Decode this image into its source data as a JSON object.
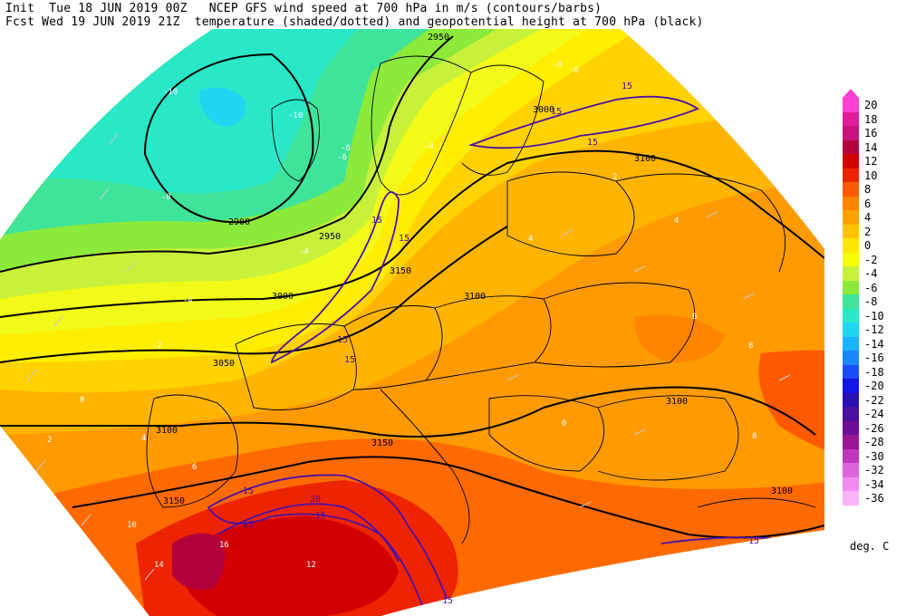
{
  "header": {
    "line1": "Init  Tue 18 JUN 2019 00Z   NCEP GFS wind speed at 700 hPa in m/s (contours/barbs)",
    "line2": "Fcst Wed 19 JUN 2019 21Z  temperature (shaded/dotted) and geopotential height at 700 hPa (black)"
  },
  "legend": {
    "units": "deg. C",
    "levels": [
      {
        "label": "20",
        "color": "#ff3fcf"
      },
      {
        "label": "18",
        "color": "#e41a9c"
      },
      {
        "label": "16",
        "color": "#c8137c"
      },
      {
        "label": "14",
        "color": "#b3003c"
      },
      {
        "label": "12",
        "color": "#d30000"
      },
      {
        "label": "10",
        "color": "#ee2400"
      },
      {
        "label": "8",
        "color": "#ff5a00"
      },
      {
        "label": "6",
        "color": "#ff8400"
      },
      {
        "label": "4",
        "color": "#ffa200"
      },
      {
        "label": "2",
        "color": "#ffc400"
      },
      {
        "label": "0",
        "color": "#ffe600"
      },
      {
        "label": "-2",
        "color": "#f4ff00"
      },
      {
        "label": "-4",
        "color": "#c8f23a"
      },
      {
        "label": "-6",
        "color": "#8cea3a"
      },
      {
        "label": "-8",
        "color": "#3ee49a"
      },
      {
        "label": "-10",
        "color": "#28e8c8"
      },
      {
        "label": "-12",
        "color": "#1ed6f2"
      },
      {
        "label": "-14",
        "color": "#18b4ff"
      },
      {
        "label": "-16",
        "color": "#1a86ff"
      },
      {
        "label": "-18",
        "color": "#1a4cff"
      },
      {
        "label": "-20",
        "color": "#1414e8"
      },
      {
        "label": "-22",
        "color": "#2a10b4"
      },
      {
        "label": "-24",
        "color": "#4a10a0"
      },
      {
        "label": "-26",
        "color": "#6e0e96"
      },
      {
        "label": "-28",
        "color": "#961696"
      },
      {
        "label": "-30",
        "color": "#be36be"
      },
      {
        "label": "-32",
        "color": "#dc64dc"
      },
      {
        "label": "-34",
        "color": "#f08cf0"
      },
      {
        "label": "-36",
        "color": "#f8b4f8"
      }
    ]
  },
  "map": {
    "height_labels": [
      "2950",
      "2900",
      "2950",
      "3000",
      "3050",
      "3100",
      "3150",
      "3100",
      "3150",
      "3100",
      "3100",
      "3000",
      "3150",
      "3100"
    ],
    "wind_labels": [
      "15",
      "15",
      "15",
      "15",
      "15",
      "15",
      "15",
      "15",
      "20",
      "15",
      "15",
      "15",
      "15"
    ],
    "temp_labels": [
      "-10",
      "-8",
      "-8",
      "-6",
      "-6",
      "-4",
      "-4",
      "-4",
      "-2",
      "0",
      "2",
      "2",
      "4",
      "4",
      "6",
      "6",
      "8",
      "10",
      "12",
      "14",
      "16",
      "-10",
      "-6",
      "4",
      "6",
      "8"
    ]
  },
  "colors": {
    "height_contour": "#000000",
    "wind_contour": "#4b0fa8",
    "border": "#000000",
    "barb": "#c8c8c8"
  }
}
